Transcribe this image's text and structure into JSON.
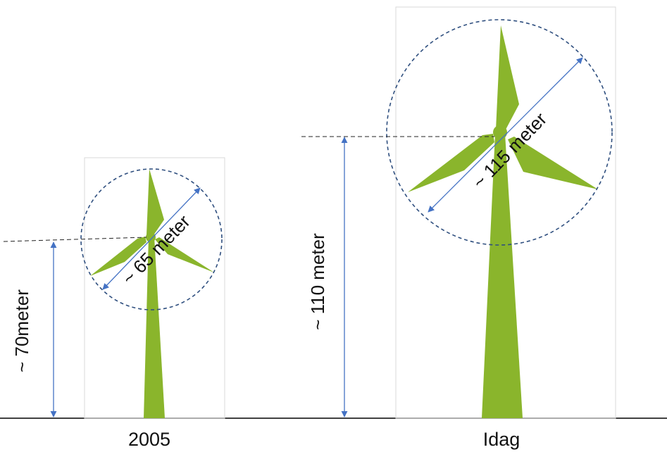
{
  "colors": {
    "blade_green": "#8ab52c",
    "dimension_blue": "#4472c4",
    "circle_blue": "#2f4f7f",
    "frame_gray": "#d9d9d9",
    "ground_black": "#000000"
  },
  "turbines": [
    {
      "caption": "2005",
      "height_label": "~ 70meter",
      "rotor_label": "~ 65 meter"
    },
    {
      "caption": "Idag",
      "height_label": "~ 110 meter",
      "rotor_label": "~ 115 meter"
    }
  ]
}
